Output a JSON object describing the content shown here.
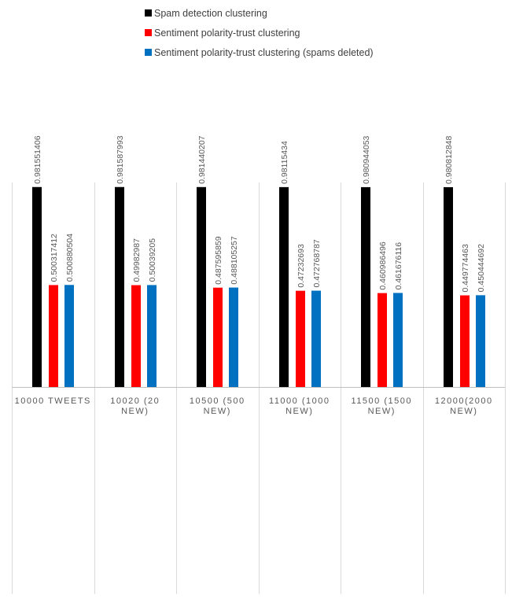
{
  "chart_data": {
    "type": "bar",
    "title": "",
    "xlabel": "",
    "ylabel": "",
    "ylim": [
      0,
      1
    ],
    "grid": "vertical category separators",
    "legend_position": "top",
    "categories": [
      "10000 TWEETS",
      "10020 (20 NEW)",
      "10500 (500 NEW)",
      "11000 (1000 NEW)",
      "11500 (1500 NEW)",
      "12000(2000 NEW)"
    ],
    "series": [
      {
        "name": "Spam detection clustering",
        "color": "#000000",
        "values": [
          0.981551406,
          0.981587993,
          0.981440207,
          0.98115434,
          0.980944053,
          0.980812848
        ],
        "labels": [
          "0.981551406",
          "0.981587993",
          "0.981440207",
          "0.98115434",
          "0.980944053",
          "0.980812848"
        ]
      },
      {
        "name": "Sentiment polarity-trust clustering",
        "color": "#ff0000",
        "values": [
          0.500317412,
          0.49982987,
          0.487595859,
          0.47232693,
          0.460986496,
          0.449774463
        ],
        "labels": [
          "0.500317412",
          "0.49982987",
          "0.487595859",
          "0.47232693",
          "0.460986496",
          "0.449774463"
        ]
      },
      {
        "name": "Sentiment polarity-trust clustering (spams deleted)",
        "color": "#0070c0",
        "values": [
          0.500880504,
          0.50039205,
          0.488105257,
          0.472768787,
          0.461676116,
          0.450444692
        ],
        "labels": [
          "0.500880504",
          "0.50039205",
          "0.488105257",
          "0.472768787",
          "0.461676116",
          "0.450444692"
        ]
      }
    ]
  }
}
